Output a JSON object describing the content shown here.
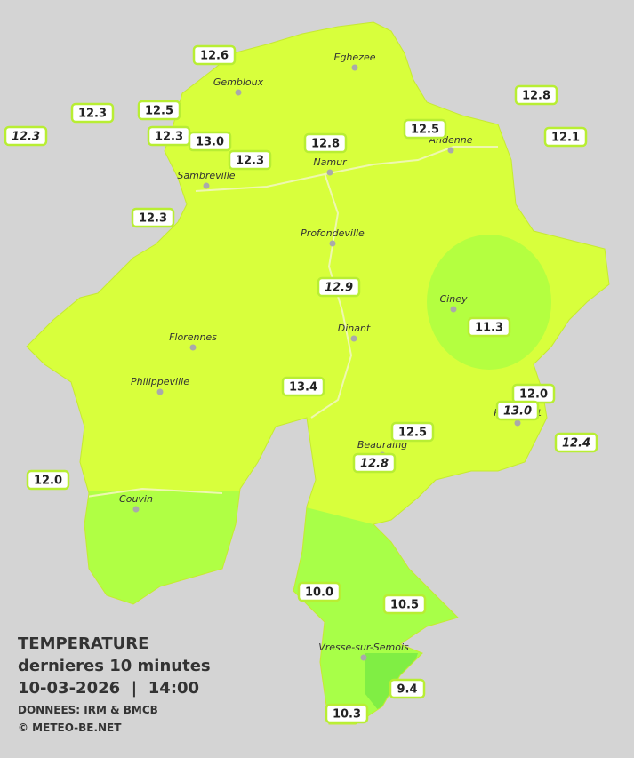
{
  "legend": {
    "title": "TEMPERATURE",
    "subtitle": "dernieres 10 minutes",
    "datetime": "10-03-2026  |  14:00",
    "source": "DONNEES: IRM & BMCB",
    "copyright": "© METEO-BE.NET"
  },
  "cities": [
    {
      "label": "Eghezee"
    },
    {
      "label": "Gembloux"
    },
    {
      "label": "Andenne"
    },
    {
      "label": "Namur"
    },
    {
      "label": "Sambreville"
    },
    {
      "label": "Profondeville"
    },
    {
      "label": "Ciney"
    },
    {
      "label": "Dinant"
    },
    {
      "label": "Florennes"
    },
    {
      "label": "Philippeville"
    },
    {
      "label": "Rochefort"
    },
    {
      "label": "Beauraing"
    },
    {
      "label": "Couvin"
    },
    {
      "label": "Vresse-sur-Semois"
    }
  ],
  "stations": [
    {
      "value": "12.6",
      "italic": false
    },
    {
      "value": "12.3",
      "italic": false
    },
    {
      "value": "12.5",
      "italic": false
    },
    {
      "value": "12.3",
      "italic": true
    },
    {
      "value": "12.3",
      "italic": false
    },
    {
      "value": "13.0",
      "italic": false
    },
    {
      "value": "12.8",
      "italic": false
    },
    {
      "value": "12.3",
      "italic": false
    },
    {
      "value": "12.5",
      "italic": false
    },
    {
      "value": "12.8",
      "italic": false
    },
    {
      "value": "12.1",
      "italic": false
    },
    {
      "value": "12.3",
      "italic": false
    },
    {
      "value": "12.9",
      "italic": true
    },
    {
      "value": "11.3",
      "italic": false
    },
    {
      "value": "13.4",
      "italic": false
    },
    {
      "value": "12.0",
      "italic": false
    },
    {
      "value": "13.0",
      "italic": true
    },
    {
      "value": "12.4",
      "italic": true
    },
    {
      "value": "12.5",
      "italic": false
    },
    {
      "value": "12.8",
      "italic": true
    },
    {
      "value": "12.0",
      "italic": false
    },
    {
      "value": "10.0",
      "italic": false
    },
    {
      "value": "10.5",
      "italic": false
    },
    {
      "value": "9.4",
      "italic": false
    },
    {
      "value": "10.3",
      "italic": false
    }
  ]
}
